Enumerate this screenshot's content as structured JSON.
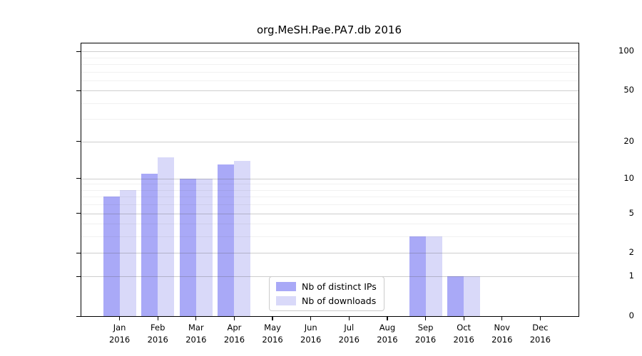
{
  "title": "org.MeSH.Pae.PA7.db 2016",
  "chart_data": {
    "type": "bar",
    "title": "org.MeSH.Pae.PA7.db 2016",
    "categories": [
      "Jan",
      "Feb",
      "Mar",
      "Apr",
      "May",
      "Jun",
      "Jul",
      "Aug",
      "Sep",
      "Oct",
      "Nov",
      "Dec"
    ],
    "category_year": "2016",
    "series": [
      {
        "name": "Nb of distinct IPs",
        "color": "#a9a9f7",
        "values": [
          7,
          11,
          10,
          13,
          0,
          0,
          0,
          0,
          3,
          1,
          0,
          0
        ]
      },
      {
        "name": "Nb of downloads",
        "color": "#d9d9f9",
        "values": [
          8,
          15,
          10,
          14,
          0,
          0,
          0,
          0,
          3,
          1,
          0,
          0
        ]
      }
    ],
    "xlabel": "",
    "ylabel": "",
    "y_scale": "log1p",
    "y_ticks": [
      0,
      1,
      2,
      5,
      10,
      20,
      50,
      100
    ],
    "y_minor_ticks": [
      3,
      4,
      6,
      7,
      8,
      9,
      30,
      40,
      60,
      70,
      80,
      90
    ],
    "y_axis_top_value": 115,
    "ylim": [
      0,
      115
    ],
    "grid": "horizontal",
    "legend_position": "lower-center",
    "frame_color": "#000000",
    "background_color": "#ffffff"
  }
}
